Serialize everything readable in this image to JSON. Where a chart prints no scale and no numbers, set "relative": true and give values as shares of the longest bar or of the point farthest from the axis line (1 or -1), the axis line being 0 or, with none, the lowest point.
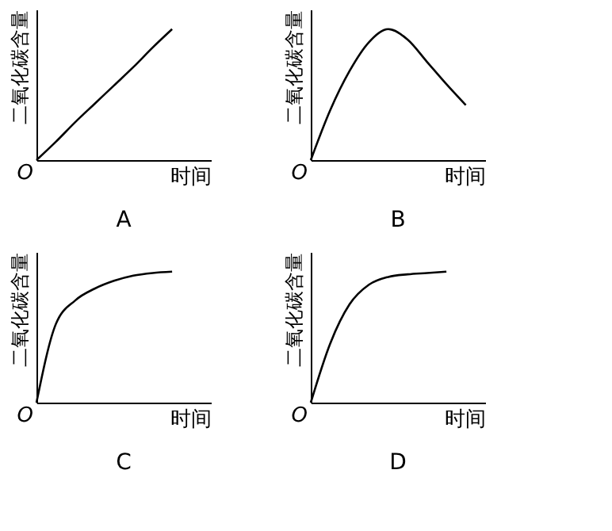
{
  "chart_data": [
    {
      "type": "line",
      "title": "A",
      "xlabel": "时间",
      "ylabel": "二氧化碳含量",
      "annotations": [
        "O"
      ],
      "relative": true,
      "categories": [
        null,
        null,
        null,
        null,
        null,
        null,
        null,
        null,
        null,
        null
      ],
      "series": [
        {
          "color": "#000000",
          "values": [
            0,
            0.14,
            0.29,
            0.43,
            0.57,
            0.71,
            0.86,
            1,
            null,
            null
          ]
        }
      ],
      "grid": false,
      "tick_labels": false
    },
    {
      "type": "line",
      "title": "B",
      "xlabel": "时间",
      "ylabel": "二氧化碳含量",
      "annotations": [
        "O"
      ],
      "relative": true,
      "categories": [
        null,
        null,
        null,
        null,
        null,
        null,
        null,
        null,
        null,
        null
      ],
      "series": [
        {
          "color": "#000000",
          "values": [
            0,
            0.38,
            0.68,
            0.9,
            1,
            0.92,
            0.75,
            0.58,
            0.42,
            null
          ]
        }
      ],
      "grid": false,
      "tick_labels": false
    },
    {
      "type": "line",
      "title": "C",
      "xlabel": "时间",
      "ylabel": "二氧化碳含量",
      "annotations": [
        "O"
      ],
      "relative": true,
      "categories": [
        null,
        null,
        null,
        null,
        null,
        null,
        null,
        null,
        null,
        null
      ],
      "series": [
        {
          "color": "#000000",
          "values": [
            0,
            0.6,
            0.78,
            0.87,
            0.93,
            0.97,
            0.99,
            1,
            null,
            null
          ]
        }
      ],
      "grid": false,
      "tick_labels": false
    },
    {
      "type": "line",
      "title": "D",
      "xlabel": "时间",
      "ylabel": "二氧化碳含量",
      "annotations": [
        "O"
      ],
      "relative": true,
      "categories": [
        null,
        null,
        null,
        null,
        null,
        null,
        null,
        null,
        null,
        null
      ],
      "series": [
        {
          "color": "#000000",
          "values": [
            0,
            0.45,
            0.75,
            0.9,
            0.96,
            0.98,
            0.99,
            1,
            null,
            null
          ]
        }
      ],
      "grid": false,
      "tick_labels": false
    }
  ]
}
